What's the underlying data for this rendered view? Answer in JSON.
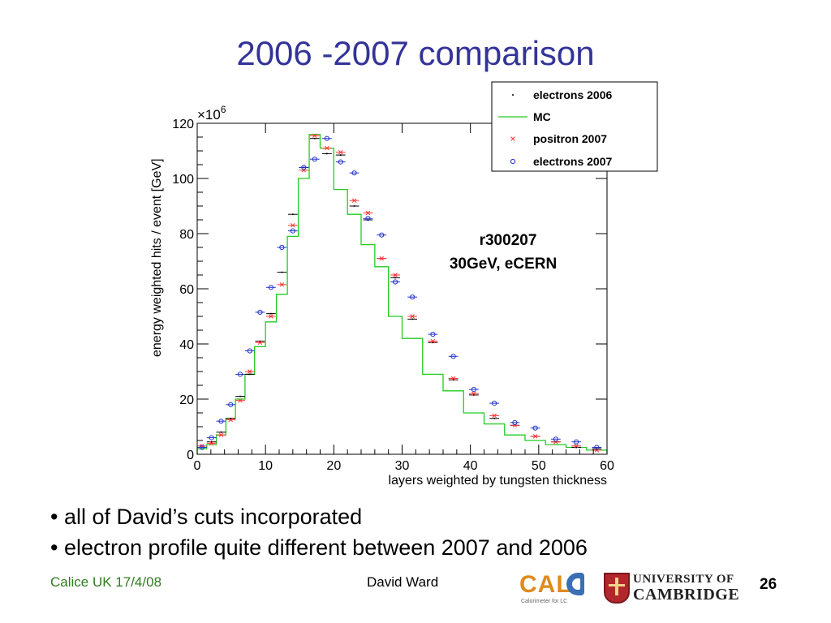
{
  "slide": {
    "title": "2006 -2007 comparison",
    "bullets": [
      "• all of David’s cuts incorporated",
      "• electron profile quite different between 2007 and 2006"
    ],
    "footer_left": "Calice UK 17/4/08",
    "footer_center": "David Ward",
    "page_number": "26",
    "logos": {
      "calice_word": "CALI",
      "calice_sub": "Calorimeter for LC",
      "cambridge_line1": "UNIVERSITY OF",
      "cambridge_line2": "CAMBRIDGE"
    }
  },
  "chart_data": {
    "type": "line",
    "title": "",
    "xlabel": "layers weighted by tungsten thickness",
    "ylabel": "energy weighted hits / event [GeV]",
    "y_multiplier": "×10⁶",
    "y_multiplier_base": "×10",
    "y_multiplier_exp": "6",
    "xlim": [
      0,
      60
    ],
    "ylim": [
      0,
      120
    ],
    "x_ticks": [
      0,
      10,
      20,
      30,
      40,
      50,
      60
    ],
    "y_ticks": [
      0,
      20,
      40,
      60,
      80,
      100,
      120
    ],
    "grid": false,
    "legend_position": "top-right",
    "annotation": [
      "r300207",
      "30GeV, eCERN"
    ],
    "mc_edges": [
      0,
      1.4,
      2.8,
      4.2,
      5.6,
      7.0,
      8.4,
      10.0,
      11.6,
      13.2,
      14.8,
      16.4,
      18.0,
      20.0,
      22.0,
      24.0,
      26.0,
      28.0,
      30.0,
      33.0,
      36.0,
      39.0,
      42.0,
      45.0,
      48.0,
      51.0,
      54.0,
      57.0,
      60.0
    ],
    "series": [
      {
        "name": "electrons 2006",
        "color": "#000000",
        "marker": "dot",
        "x": [
          0.7,
          2.1,
          3.5,
          4.9,
          6.3,
          7.7,
          9.2,
          10.8,
          12.4,
          14.0,
          15.6,
          17.2,
          19.0,
          21.0,
          23.0,
          25.0,
          27.0,
          29.0,
          31.5,
          34.5,
          37.5,
          40.5,
          43.5,
          46.5,
          49.5,
          52.5,
          55.5,
          58.5
        ],
        "y": [
          2.5,
          4.5,
          8,
          13,
          21,
          29,
          41,
          51,
          66,
          87,
          104,
          114.5,
          109,
          108.5,
          90,
          85,
          71,
          64,
          49,
          40.5,
          27,
          21.5,
          13,
          10.5,
          6.5,
          4.5,
          2.5,
          2.0
        ]
      },
      {
        "name": "MC",
        "color": "#22cc22",
        "marker": "step",
        "values": [
          2.0,
          3.5,
          7.0,
          13.0,
          20.0,
          29.0,
          39.0,
          48.0,
          58.0,
          79.0,
          100.0,
          116.0,
          111.0,
          96.0,
          87.0,
          76.0,
          68.0,
          50.0,
          42.0,
          29.0,
          23.0,
          15.0,
          11.0,
          7.0,
          5.0,
          3.5,
          2.5,
          1.5
        ]
      },
      {
        "name": "positron 2007",
        "color": "#ff3333",
        "marker": "x",
        "x": [
          0.7,
          2.1,
          3.5,
          4.9,
          6.3,
          7.7,
          9.2,
          10.8,
          12.4,
          14.0,
          15.6,
          17.2,
          19.0,
          21.0,
          23.0,
          25.0,
          27.0,
          29.0,
          31.5,
          34.5,
          37.5,
          40.5,
          43.5,
          46.5,
          49.5,
          52.5,
          55.5,
          58.5
        ],
        "y": [
          3,
          4,
          7,
          12.5,
          19.5,
          30,
          40.5,
          50,
          61.5,
          83,
          103,
          115.5,
          111,
          109.5,
          92,
          87.5,
          71,
          65,
          50,
          41,
          27.5,
          22,
          14,
          10.5,
          6.5,
          4.5,
          3,
          1.5
        ]
      },
      {
        "name": "electrons 2007",
        "color": "#2233cc",
        "marker": "o",
        "x": [
          0.7,
          2.1,
          3.5,
          4.9,
          6.3,
          7.7,
          9.2,
          10.8,
          12.4,
          14.0,
          15.6,
          17.2,
          19.0,
          21.0,
          23.0,
          25.0,
          27.0,
          29.0,
          31.5,
          34.5,
          37.5,
          40.5,
          43.5,
          46.5,
          49.5,
          52.5,
          55.5,
          58.5
        ],
        "y": [
          2.5,
          6,
          12,
          18,
          29,
          37.5,
          51.5,
          60.5,
          75,
          81,
          104,
          107,
          114.5,
          106,
          102,
          85.5,
          79.5,
          62.5,
          57,
          43.5,
          35.5,
          23.5,
          18.5,
          11.5,
          9.5,
          5.5,
          4.5,
          2.5
        ]
      }
    ]
  }
}
